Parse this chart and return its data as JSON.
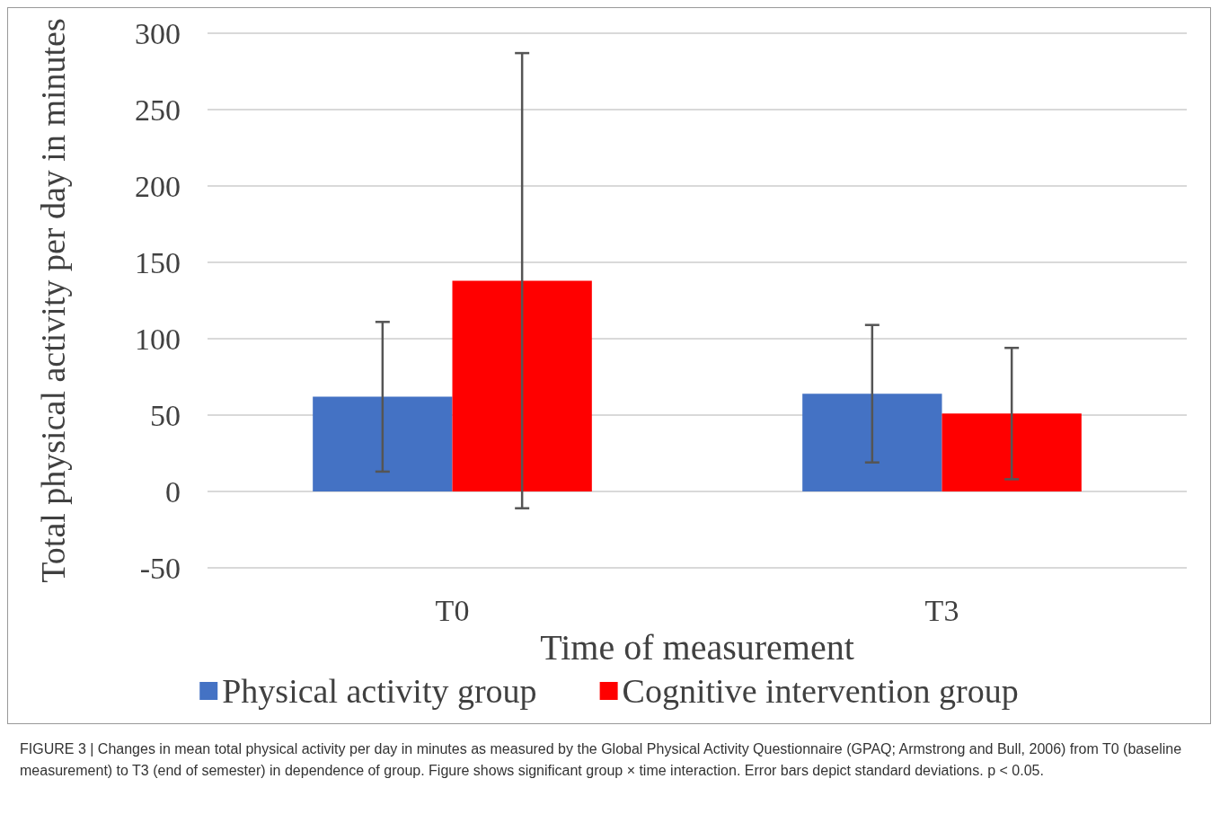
{
  "chart_data": {
    "type": "bar",
    "xlabel": "Time of measurement",
    "ylabel": "Total physical activity per day in minutes",
    "categories": [
      "T0",
      "T3"
    ],
    "series": [
      {
        "name": "Physical activity group",
        "color": "#4472c4",
        "values": [
          62,
          64
        ],
        "errors": [
          49,
          45
        ]
      },
      {
        "name": "Cognitive intervention group",
        "color": "#ff0000",
        "values": [
          138,
          51
        ],
        "errors": [
          149,
          43
        ]
      }
    ],
    "ylim": [
      -50,
      300
    ],
    "yticks": [
      -50,
      0,
      50,
      100,
      150,
      200,
      250,
      300
    ],
    "grid": "y",
    "legend": "bottom",
    "annotations": [
      "FIGURE 3 | Changes in mean total physical activity per day in minutes as measured by the Global Physical Activity Questionnaire (GPAQ; Armstrong and Bull, 2006) from T0 (baseline measurement) to T3 (end of semester) in dependence of group. Figure shows significant group × time interaction. Error bars depict standard deviations. p < 0.05."
    ]
  }
}
